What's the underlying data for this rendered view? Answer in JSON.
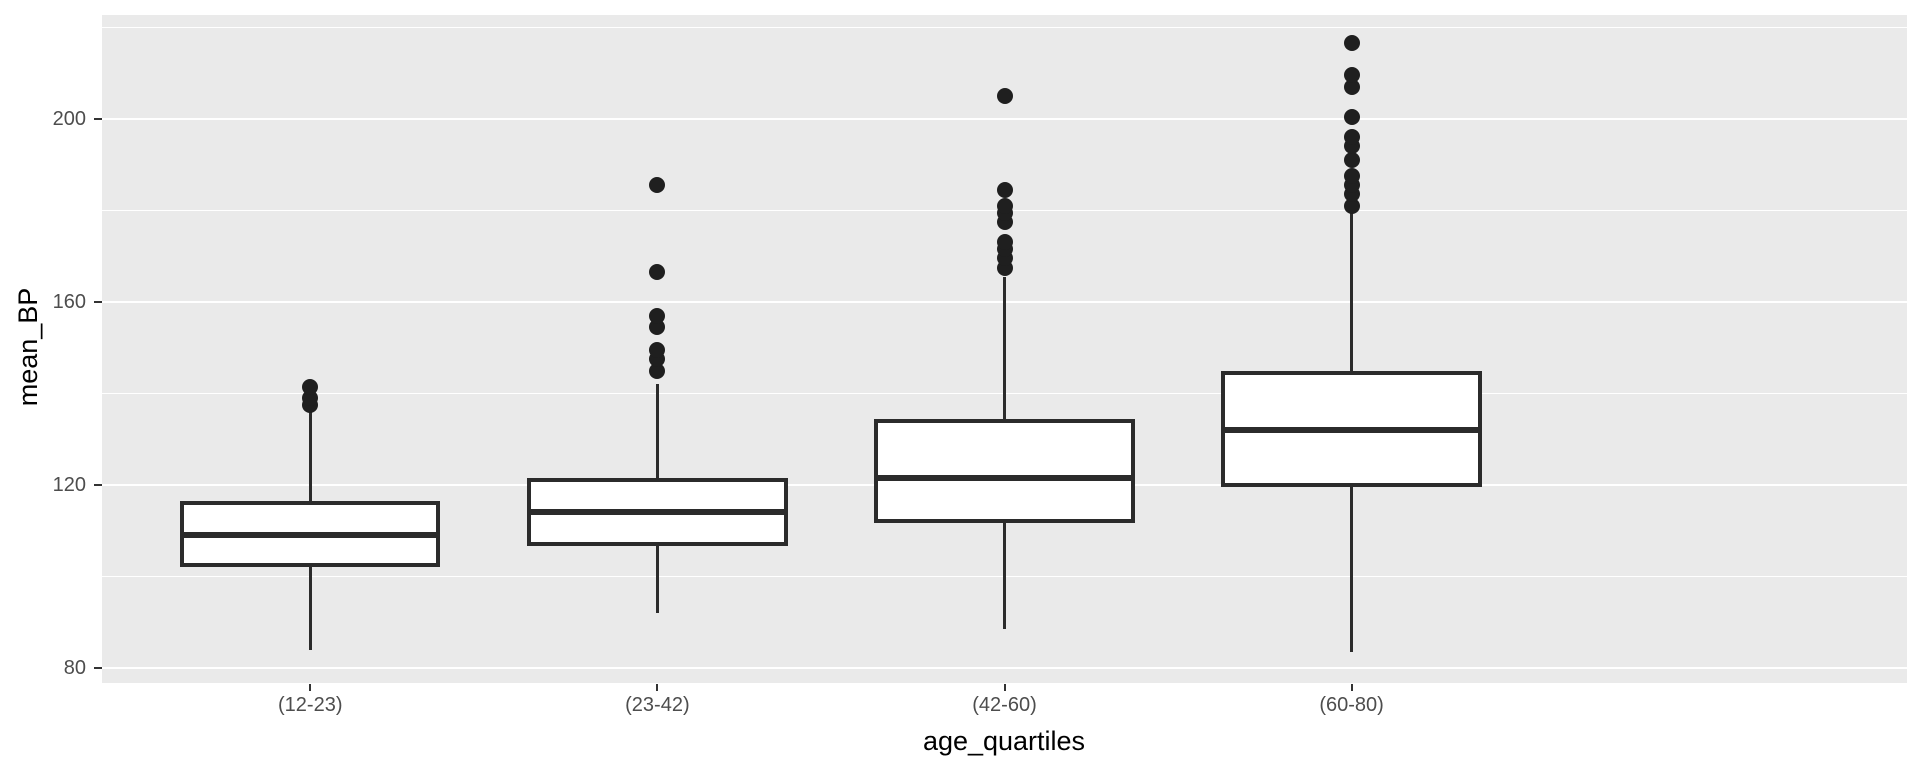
{
  "figure": {
    "background": "#FFFFFF",
    "panel_background": "#EAEAEA",
    "grid_color": "#FFFFFF",
    "box_fill": "#FFFFFF",
    "box_border_color": "#2B2B2B",
    "outlier_color": "#1F1F1F",
    "tick_label_color": "#4D4D4D",
    "axis_title_color": "#000000"
  },
  "chart_data": {
    "type": "boxplot",
    "title": "",
    "xlabel": "age_quartiles",
    "ylabel": "mean_BP",
    "categories": [
      "(12-23)",
      "(23-42)",
      "(42-60)",
      "(60-80)"
    ],
    "y_ticks": [
      80,
      120,
      160,
      200
    ],
    "y_minor_ticks": [
      100,
      140,
      180,
      220
    ],
    "ylim": [
      76.7,
      222.7
    ],
    "grid": true,
    "legend_position": "none",
    "box_width_fraction": 0.75,
    "series": [
      {
        "category": "(12-23)",
        "whisker_low": 84,
        "q1": 102.5,
        "median": 109,
        "q3": 116,
        "whisker_high": 136,
        "outliers": [
          137.5,
          139,
          141.5
        ]
      },
      {
        "category": "(23-42)",
        "whisker_low": 92,
        "q1": 107,
        "median": 114,
        "q3": 121,
        "whisker_high": 142,
        "outliers": [
          145,
          147.5,
          149.5,
          154.5,
          157,
          166.5,
          185.5
        ]
      },
      {
        "category": "(42-60)",
        "whisker_low": 88.5,
        "q1": 112,
        "median": 121.5,
        "q3": 134,
        "whisker_high": 165.5,
        "outliers": [
          167.5,
          169.5,
          171.5,
          173,
          177.5,
          179.5,
          181,
          184.5,
          205
        ]
      },
      {
        "category": "(60-80)",
        "whisker_low": 83.5,
        "q1": 120,
        "median": 132,
        "q3": 144.5,
        "whisker_high": 180,
        "outliers": [
          181,
          183.5,
          185.5,
          187.5,
          191,
          194,
          196,
          200.5,
          207,
          209.5,
          216.5
        ]
      }
    ]
  }
}
